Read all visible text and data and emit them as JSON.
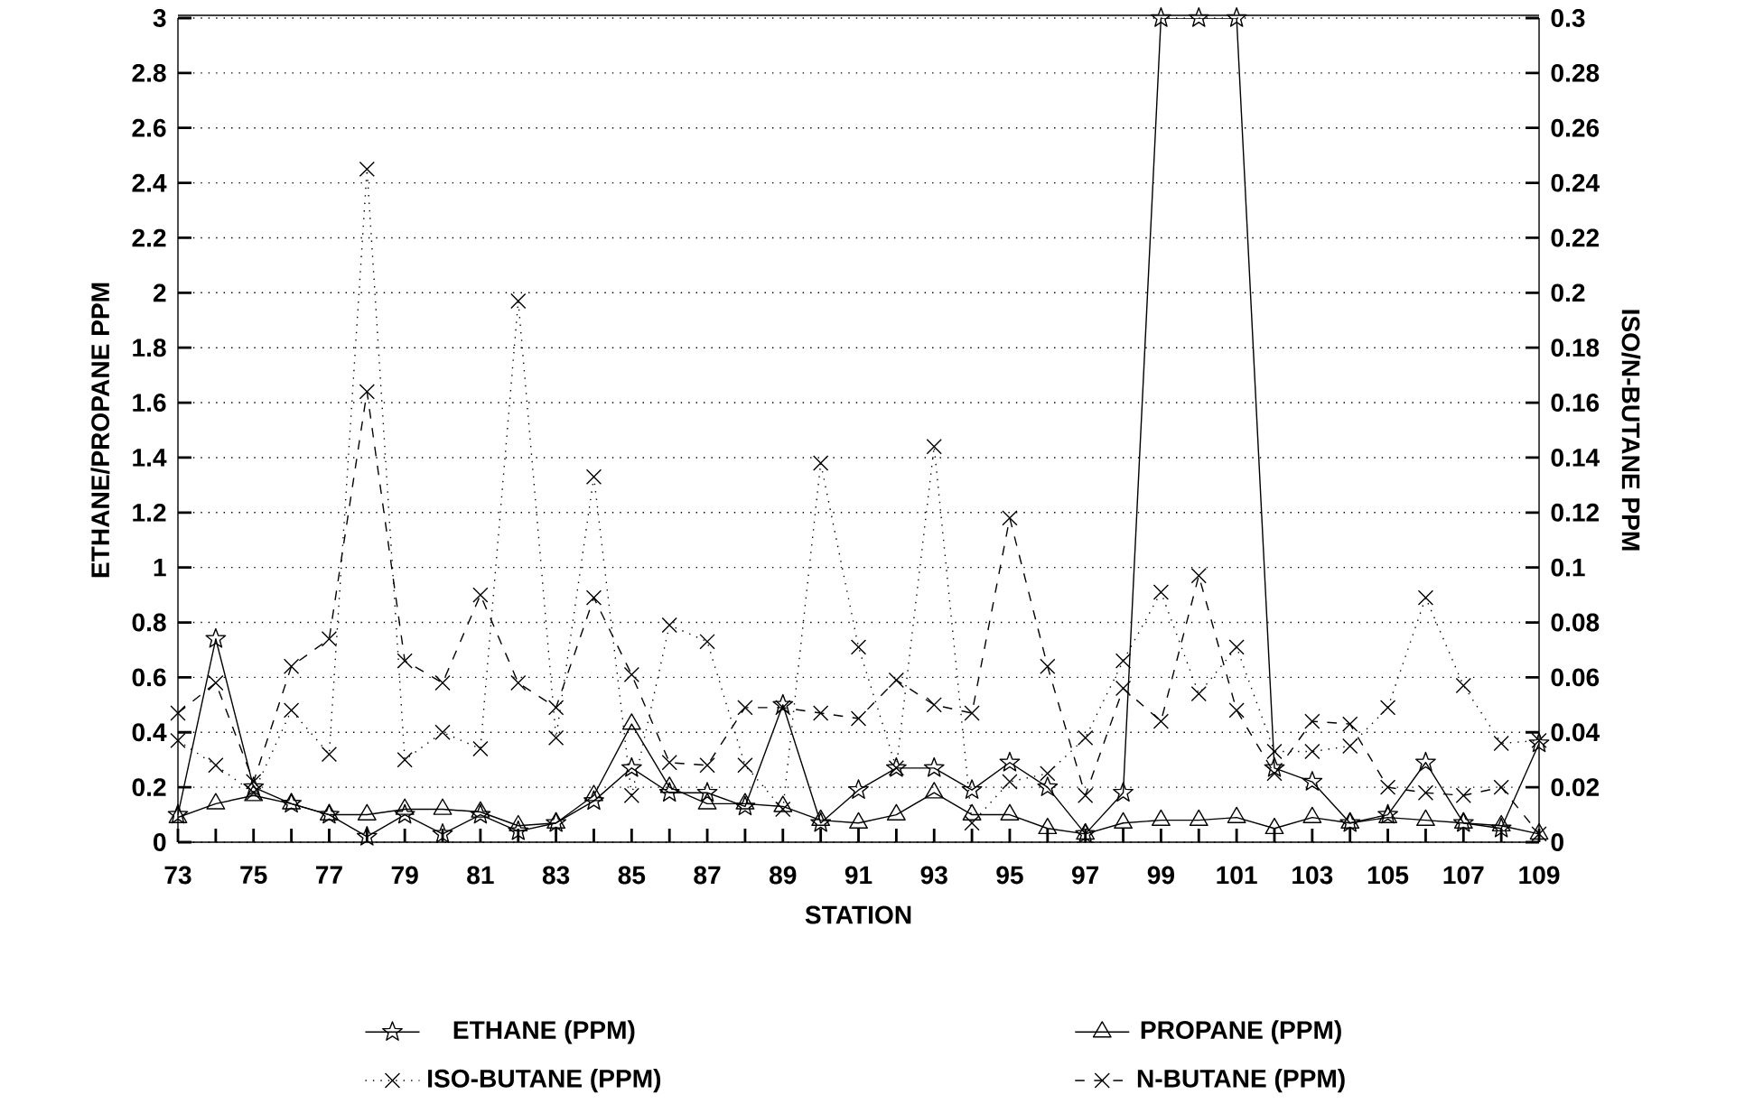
{
  "chart_data": {
    "type": "line",
    "xlabel": "STATION",
    "ylabel": "ETHANE/PROPANE     PPM",
    "y2label": "ISO/N-BUTANE     PPM",
    "x": [
      73,
      74,
      75,
      76,
      77,
      78,
      79,
      80,
      81,
      82,
      83,
      84,
      85,
      86,
      87,
      88,
      89,
      90,
      91,
      92,
      93,
      94,
      95,
      96,
      97,
      98,
      99,
      100,
      101,
      102,
      103,
      104,
      105,
      106,
      107,
      108,
      109
    ],
    "xlim": [
      73,
      109
    ],
    "xticks": [
      73,
      {
        "value": 74,
        "label": null
      },
      75,
      {
        "value": 76,
        "label": null
      },
      77,
      {
        "value": 78,
        "label": null
      },
      79,
      {
        "value": 80,
        "label": null
      },
      81,
      {
        "value": 82,
        "label": null
      },
      83,
      {
        "value": 84,
        "label": null
      },
      85,
      {
        "value": 86,
        "label": null
      },
      87,
      {
        "value": 88,
        "label": null
      },
      89,
      {
        "value": 90,
        "label": null
      },
      91,
      {
        "value": 92,
        "label": null
      },
      93,
      {
        "value": 94,
        "label": null
      },
      95,
      {
        "value": 96,
        "label": null
      },
      97,
      {
        "value": 98,
        "label": null
      },
      99,
      {
        "value": 100,
        "label": null
      },
      101,
      {
        "value": 102,
        "label": null
      },
      103,
      {
        "value": 104,
        "label": null
      },
      105,
      {
        "value": 106,
        "label": null
      },
      107,
      {
        "value": 108,
        "label": null
      },
      109
    ],
    "ylim": [
      0,
      3
    ],
    "yticks": [
      0,
      0.2,
      0.4,
      0.6,
      0.8,
      1,
      1.2,
      1.4,
      1.6,
      1.8,
      2,
      2.2,
      2.4,
      2.6,
      2.8,
      3
    ],
    "y2lim": [
      0,
      0.3
    ],
    "y2ticks": [
      0,
      0.02,
      0.04,
      0.06,
      0.08,
      0.1,
      0.12,
      0.14,
      0.16,
      0.18,
      0.2,
      0.22,
      0.24,
      0.26,
      0.28,
      0.3
    ],
    "grid": "y",
    "legend": "bottom",
    "series": [
      {
        "name": "ETHANE (PPM)",
        "color": "#000000",
        "marker": "star",
        "line_style": "solid",
        "values": [
          0.1,
          0.74,
          0.2,
          0.14,
          0.1,
          0.02,
          0.1,
          0.03,
          0.1,
          0.04,
          0.07,
          0.15,
          0.27,
          0.18,
          0.18,
          0.13,
          0.5,
          0.07,
          0.19,
          0.27,
          0.27,
          0.19,
          0.29,
          0.2,
          0.03,
          0.18,
          3,
          3,
          3,
          0.27,
          0.22,
          0.07,
          0.1,
          0.29,
          0.07,
          0.05,
          0.36
        ]
      },
      {
        "name": "PROPANE (PPM)",
        "color": "#000000",
        "marker": "triangle",
        "line_style": "solid",
        "values": [
          0.09,
          0.14,
          0.17,
          0.14,
          0.1,
          0.1,
          0.12,
          0.12,
          0.11,
          0.06,
          0.07,
          0.17,
          0.43,
          0.2,
          0.14,
          0.14,
          0.13,
          0.08,
          0.07,
          0.1,
          0.18,
          0.1,
          0.1,
          0.05,
          0.03,
          0.07,
          0.08,
          0.08,
          0.09,
          0.05,
          0.09,
          0.07,
          0.09,
          0.08,
          0.07,
          0.06,
          0.03
        ]
      },
      {
        "name": "ISO-BUTANE (PPM)",
        "color": "#000000",
        "marker": "cross",
        "line_style": "dotted",
        "axis": "y2",
        "values": [
          0.037,
          0.028,
          0.018,
          0.048,
          0.032,
          0.245,
          0.03,
          0.04,
          0.034,
          0.197,
          0.038,
          0.133,
          0.017,
          0.079,
          0.073,
          0.028,
          0.012,
          0.138,
          0.071,
          0.027,
          0.144,
          0.007,
          0.022,
          0.025,
          0.038,
          0.066,
          0.091,
          0.054,
          0.071,
          0.033,
          0.033,
          0.035,
          0.049,
          0.089,
          0.057,
          0.036,
          0.037
        ]
      },
      {
        "name": "N-BUTANE (PPM)",
        "color": "#000000",
        "marker": "cross",
        "line_style": "dashed",
        "axis": "y2",
        "values": [
          0.047,
          0.058,
          0.022,
          0.064,
          0.074,
          0.164,
          0.066,
          0.058,
          0.09,
          0.058,
          0.049,
          0.089,
          0.061,
          0.029,
          0.028,
          0.049,
          0.049,
          0.047,
          0.045,
          0.059,
          0.05,
          0.047,
          0.118,
          0.064,
          0.017,
          0.056,
          0.044,
          0.097,
          0.048,
          0.025,
          0.044,
          0.043,
          0.02,
          0.018,
          0.017,
          0.02,
          0.003
        ]
      }
    ]
  }
}
